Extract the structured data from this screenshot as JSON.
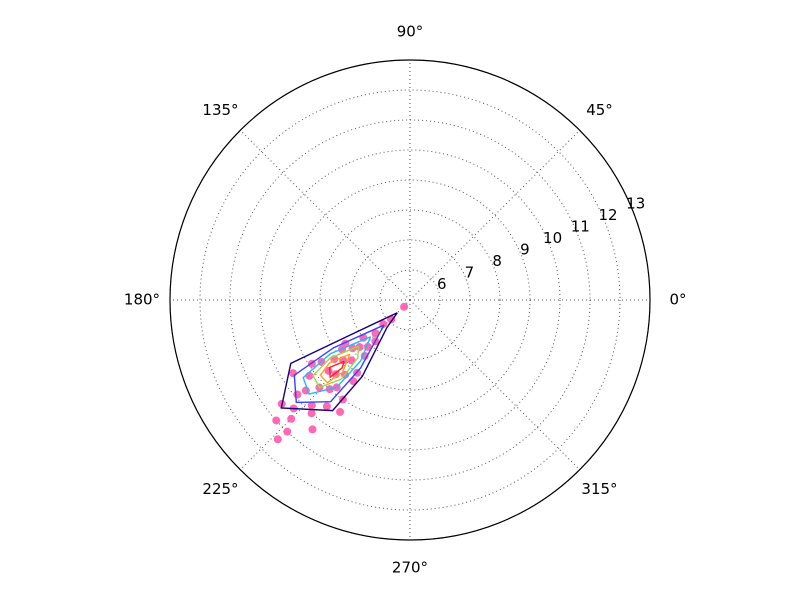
{
  "chart_data": {
    "type": "polar",
    "rlim": [
      5,
      13
    ],
    "rticks": [
      6,
      7,
      8,
      9,
      10,
      11,
      12,
      13
    ],
    "thetaticks": [
      {
        "value": 0,
        "label": "0°"
      },
      {
        "value": 45,
        "label": "45°"
      },
      {
        "value": 90,
        "label": "90°"
      },
      {
        "value": 135,
        "label": "135°"
      },
      {
        "value": 180,
        "label": "180°"
      },
      {
        "value": 225,
        "label": "225°"
      },
      {
        "value": 270,
        "label": "270°"
      },
      {
        "value": 315,
        "label": "315°"
      }
    ],
    "grid": true,
    "series": [
      {
        "type": "scatter",
        "color": "#ff69b4",
        "theta": [
          225,
          222,
          228,
          220,
          230,
          218,
          232,
          224,
          226,
          221,
          229,
          223,
          227,
          226.5,
          215,
          235,
          219,
          231,
          224,
          222,
          226,
          220,
          233,
          217,
          236,
          213,
          228,
          216,
          234,
          225,
          223,
          230,
          219,
          212,
          222,
          238,
          214,
          227,
          221,
          229,
          229
        ],
        "r": [
          8.5,
          8.0,
          9.0,
          7.5,
          8.8,
          8.2,
          9.5,
          9.2,
          7.8,
          9.6,
          10.0,
          10.3,
          11.0,
          11.4,
          8.6,
          8.3,
          7.0,
          7.4,
          6.6,
          6.2,
          5.9,
          9.9,
          10.4,
          9.2,
          9.0,
          8.9,
          7.1,
          7.8,
          8.0,
          10.6,
          7.3,
          6.8,
          10.5,
          9.6,
          11.0,
          9.4,
          7.6,
          9.8,
          8.6,
          8.3,
          5.3
        ]
      },
      {
        "type": "line",
        "color": "#1a0080",
        "theta": [
          225,
          210,
          208,
          220,
          235,
          238,
          230,
          225
        ],
        "r": [
          5.6,
          7.5,
          9.5,
          10.6,
          9.5,
          8.0,
          6.2,
          5.6
        ]
      },
      {
        "type": "line",
        "color": "#3344ff",
        "theta": [
          224,
          212,
          213,
          222,
          232,
          234,
          224
        ],
        "r": [
          6.2,
          8.0,
          9.6,
          10.1,
          9.3,
          7.8,
          6.2
        ]
      },
      {
        "type": "line",
        "color": "#22b8ff",
        "theta": [
          223,
          214,
          216,
          223,
          230,
          231,
          223
        ],
        "r": [
          6.8,
          8.2,
          9.4,
          9.6,
          8.8,
          7.6,
          6.8
        ]
      },
      {
        "type": "line",
        "color": "#9ad84a",
        "theta": [
          222,
          216,
          218,
          224,
          229,
          228,
          222
        ],
        "r": [
          7.3,
          8.3,
          9.1,
          9.2,
          8.5,
          7.6,
          7.3
        ]
      },
      {
        "type": "line",
        "color": "#ffa020",
        "theta": [
          222,
          218,
          220,
          225,
          227,
          222
        ],
        "r": [
          7.7,
          8.4,
          8.9,
          8.9,
          8.3,
          7.7
        ]
      },
      {
        "type": "line",
        "color": "#ff2020",
        "theta": [
          223,
          220,
          224,
          225,
          223
        ],
        "r": [
          8.0,
          8.5,
          8.7,
          8.2,
          8.0
        ]
      }
    ]
  }
}
